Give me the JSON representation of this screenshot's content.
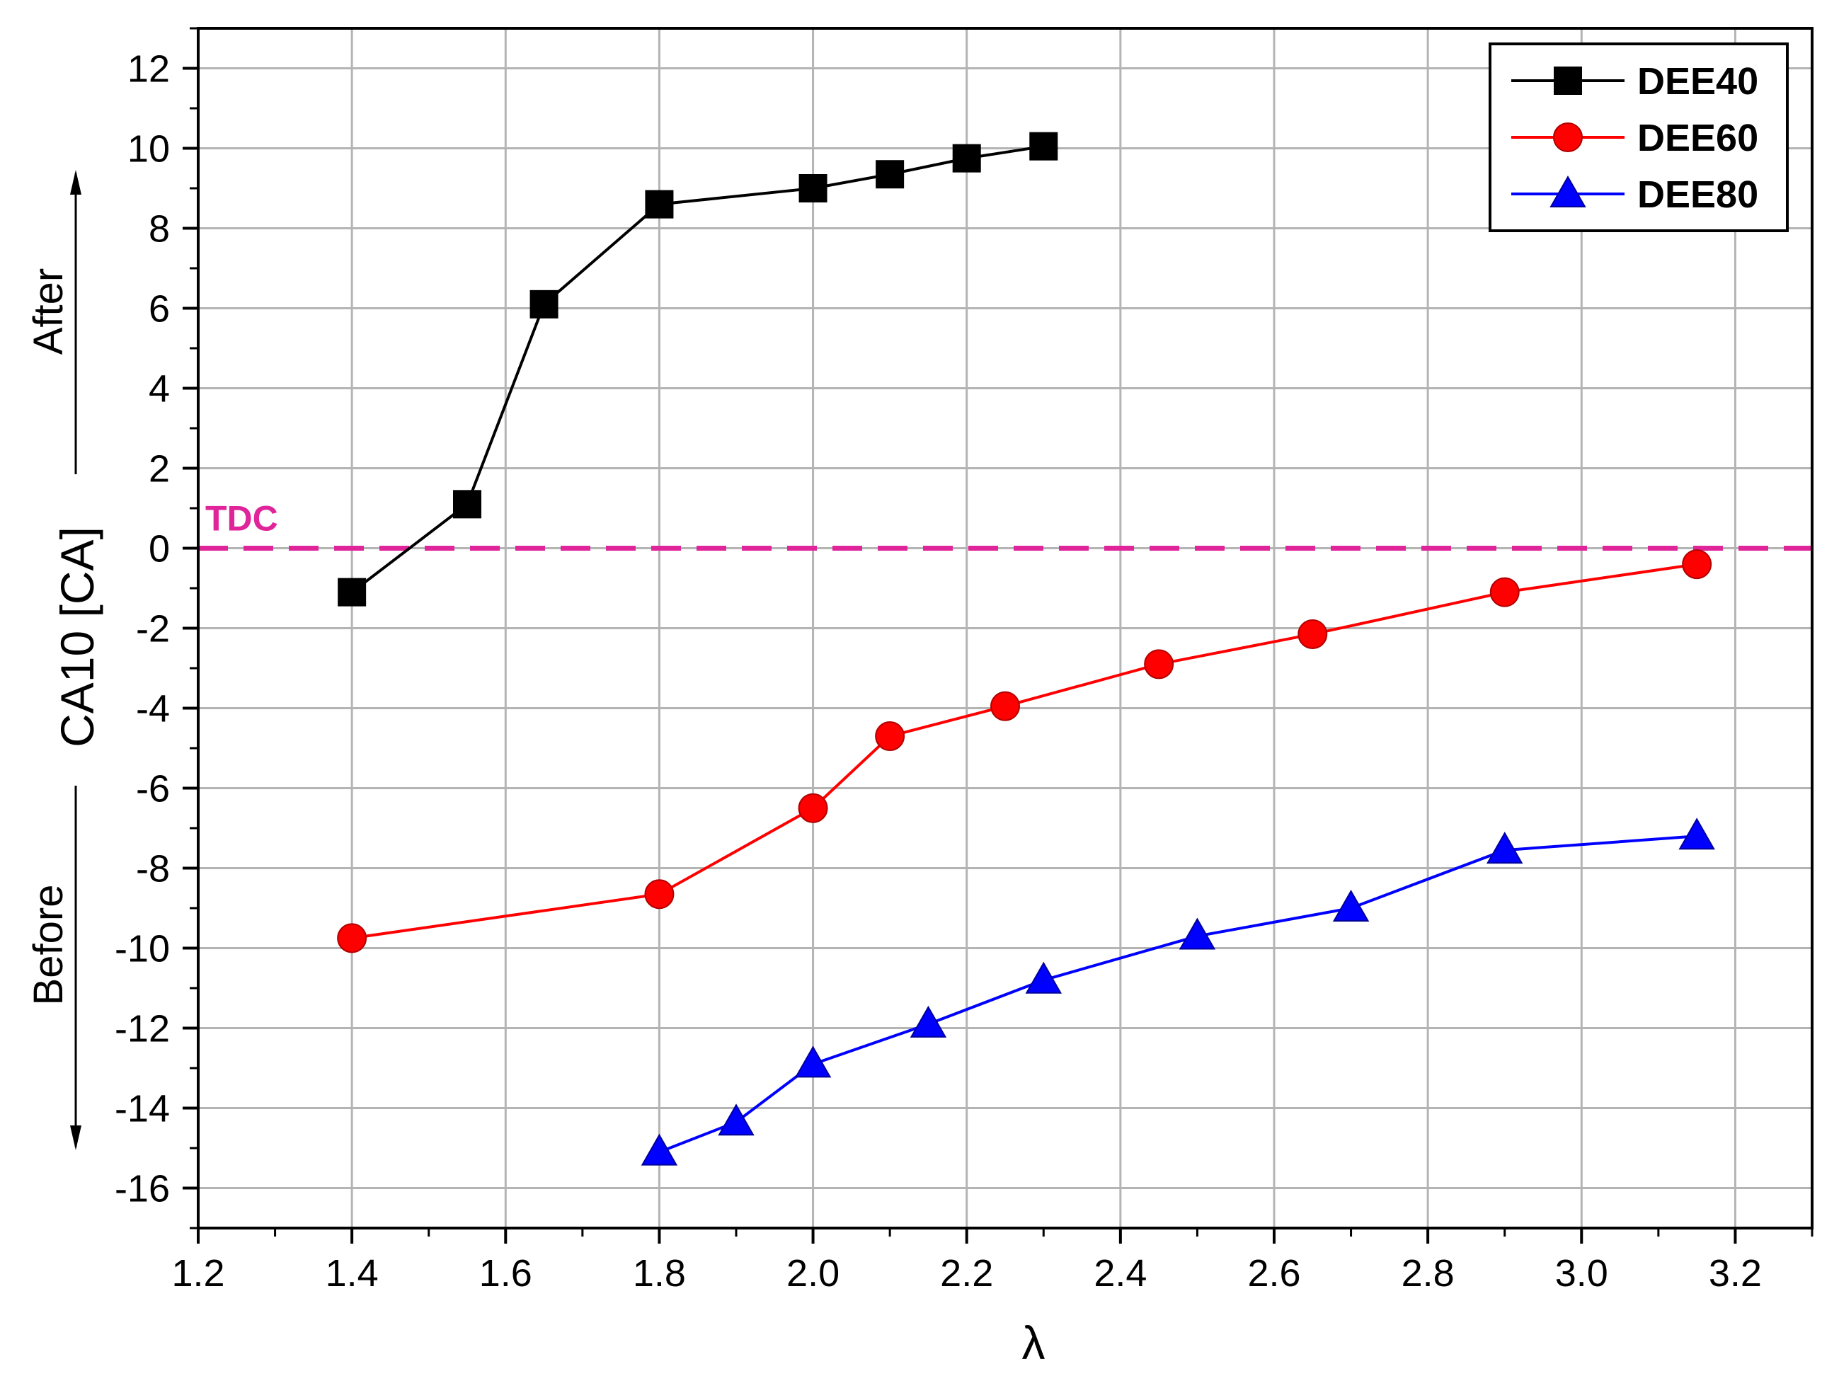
{
  "chart_data": {
    "type": "line",
    "title": "",
    "xlabel": "λ",
    "ylabel": "CA10 [CA]",
    "xlim": [
      1.2,
      3.3
    ],
    "ylim": [
      -17,
      13
    ],
    "x_ticks": [
      "1.2",
      "1.4",
      "1.6",
      "1.8",
      "2.0",
      "2.2",
      "2.4",
      "2.6",
      "2.8",
      "3.0",
      "3.2"
    ],
    "y_ticks": [
      "-16",
      "-14",
      "-12",
      "-10",
      "-8",
      "-6",
      "-4",
      "-2",
      "0",
      "2",
      "4",
      "6",
      "8",
      "10",
      "12"
    ],
    "grid": true,
    "legend_position": "top-right",
    "annotations": {
      "after": "After",
      "before": "Before",
      "reference_line": {
        "label": "TDC",
        "y": 0,
        "color": "#e0249a"
      }
    },
    "series": [
      {
        "name": "DEE40",
        "color": "#000000",
        "marker": "square",
        "x": [
          1.4,
          1.55,
          1.65,
          1.8,
          2.0,
          2.1,
          2.2,
          2.3
        ],
        "y": [
          -1.1,
          1.1,
          6.1,
          8.6,
          9.0,
          9.35,
          9.75,
          10.05
        ]
      },
      {
        "name": "DEE60",
        "color": "#ff0000",
        "marker": "circle",
        "x": [
          1.4,
          1.8,
          2.0,
          2.1,
          2.25,
          2.45,
          2.65,
          2.9,
          3.15
        ],
        "y": [
          -9.75,
          -8.65,
          -6.5,
          -4.7,
          -3.95,
          -2.9,
          -2.15,
          -1.1,
          -0.4
        ]
      },
      {
        "name": "DEE80",
        "color": "#0000ff",
        "marker": "triangle",
        "x": [
          1.8,
          1.9,
          2.0,
          2.15,
          2.3,
          2.5,
          2.7,
          2.9,
          3.15
        ],
        "y": [
          -15.1,
          -14.35,
          -12.9,
          -11.9,
          -10.8,
          -9.7,
          -9.0,
          -7.55,
          -7.2
        ]
      }
    ]
  }
}
